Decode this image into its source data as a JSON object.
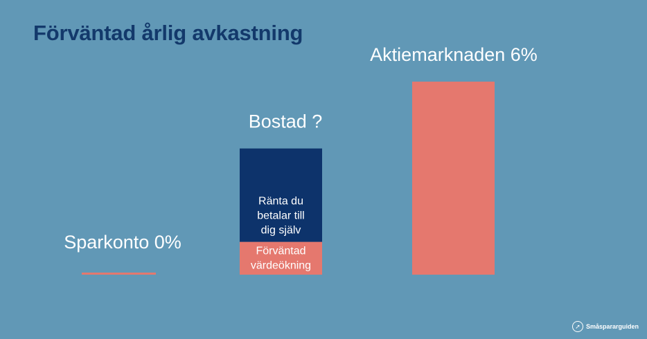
{
  "title": "Förväntad årlig avkastning",
  "brand": "Småspararguiden",
  "colors": {
    "background": "#6198b6",
    "title": "#13396b",
    "coral": "#e5786e",
    "navy": "#0d336b",
    "white": "#ffffff"
  },
  "chart_data": {
    "type": "bar",
    "categories": [
      "Sparkonto",
      "Bostad",
      "Aktiemarknaden"
    ],
    "category_labels": [
      "Sparkonto 0%",
      "Bostad ?",
      "Aktiemarknaden 6%"
    ],
    "values": [
      0,
      null,
      6
    ],
    "ylim": [
      0,
      6
    ],
    "stacked_segments": {
      "category": "Bostad",
      "segments": [
        {
          "label": "Förväntad värdeökning",
          "lines": [
            "Förväntad",
            "värdeökning"
          ],
          "color": "#e5786e",
          "share": 0.26
        },
        {
          "label": "Ränta du betalar till dig själv",
          "lines": [
            "Ränta du",
            "betalar till",
            "dig själv"
          ],
          "color": "#0d336b",
          "share": 0.74
        }
      ]
    },
    "bostad_relative_height": 0.6
  }
}
